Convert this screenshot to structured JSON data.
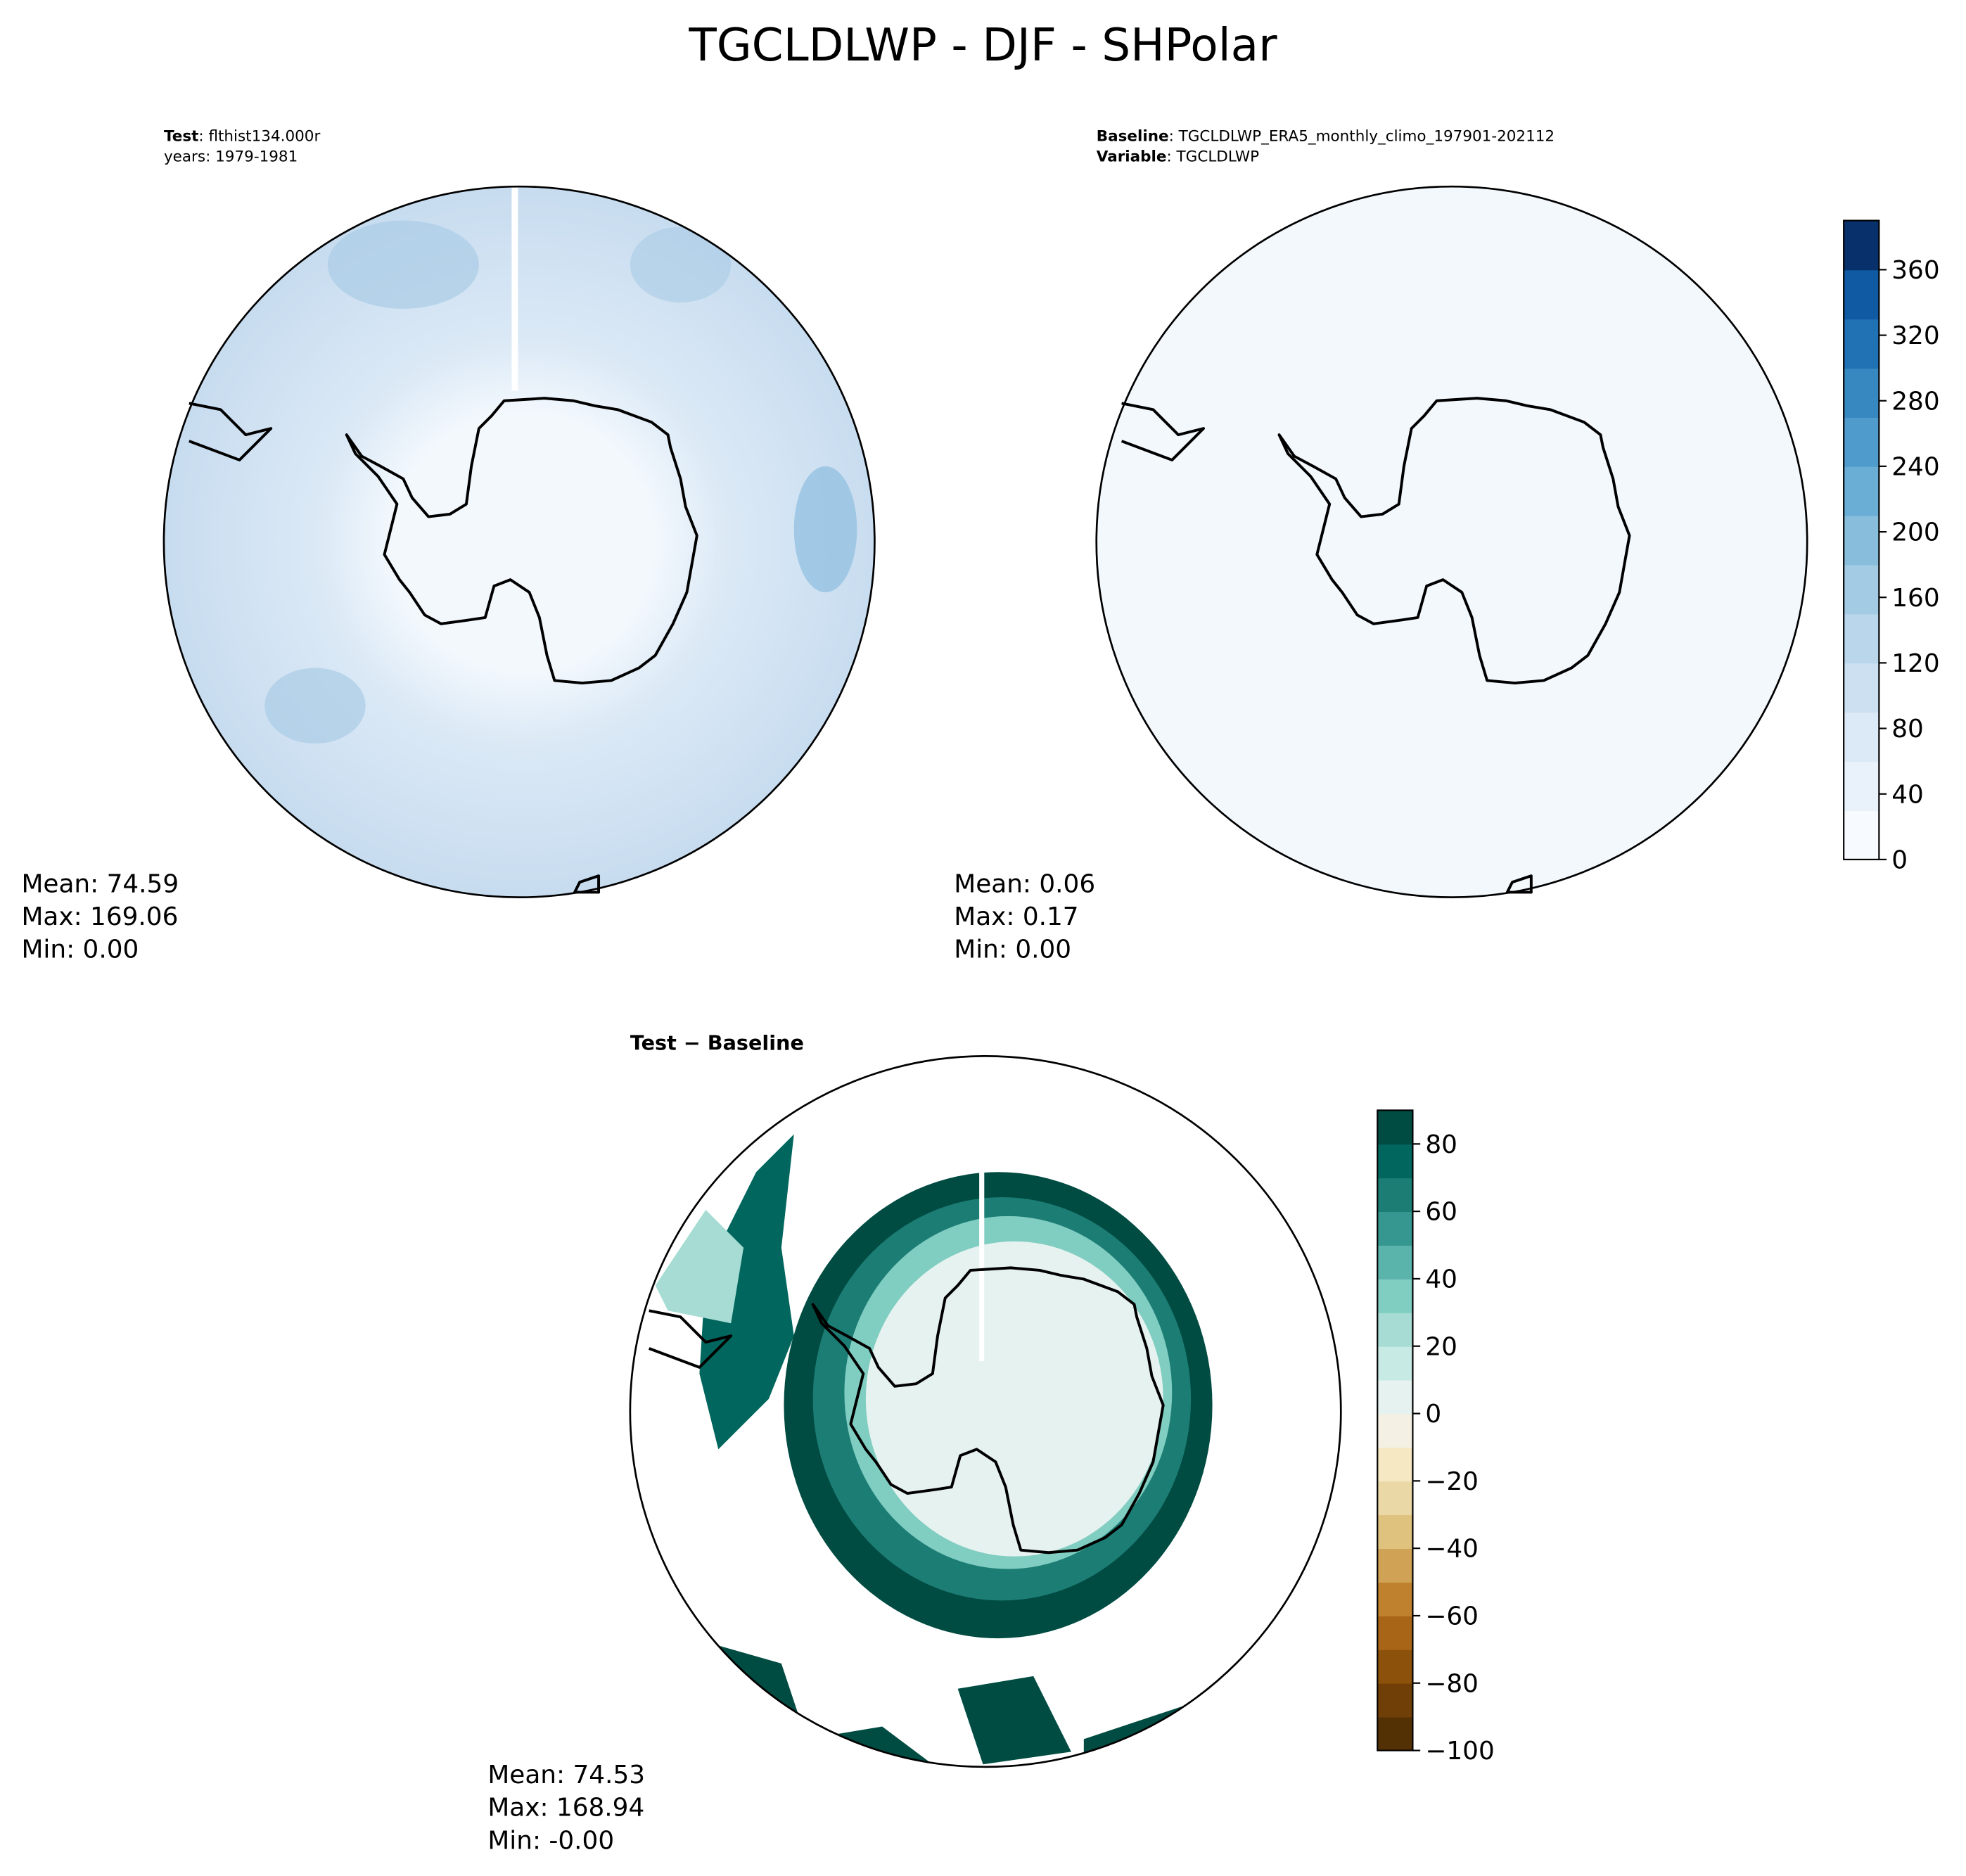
{
  "chart_data": {
    "type": "polar-map",
    "title": "TGCLDLWP - DJF - SHPolar",
    "panels": [
      {
        "header": [
          [
            "Test",
            ": flthist134.000r"
          ],
          [
            "years: 1979-1981"
          ]
        ],
        "stats": [
          "Mean: 74.59",
          "Max: 169.06",
          "Min:  0.00"
        ]
      },
      {
        "header": [
          [
            "Baseline",
            ": TGCLDLWP_ERA5_monthly_climo_197901-202112"
          ],
          [
            "Variable",
            ": TGCLDLWP"
          ]
        ],
        "stats": [
          "Mean:  0.06",
          "Max:  0.17",
          "Min:  0.00"
        ]
      },
      {
        "header": [
          [
            "Test − Baseline"
          ]
        ],
        "stats": [
          "Mean: 74.53",
          "Max: 168.94",
          "Min: -0.00"
        ]
      }
    ],
    "colorbars": [
      {
        "ylim": [
          0,
          390
        ],
        "yticks": [
          0,
          40,
          80,
          120,
          160,
          200,
          240,
          280,
          320,
          360
        ],
        "colors": [
          "#f7fbff",
          "#e9f2fa",
          "#dce9f6",
          "#cde0f1",
          "#bad6eb",
          "#a3cbe3",
          "#88bedc",
          "#6aaed6",
          "#4f9bcb",
          "#3787c0",
          "#2171b5",
          "#0f5aa3",
          "#08306b"
        ]
      },
      {
        "ylim": [
          -100,
          90
        ],
        "yticks": [
          {
            "value": -100,
            "label": "−100"
          },
          {
            "value": -80,
            "label": "−80"
          },
          {
            "value": -60,
            "label": "−60"
          },
          {
            "value": -40,
            "label": "−40"
          },
          {
            "value": -20,
            "label": "−20"
          },
          0,
          20,
          40,
          60,
          80
        ],
        "colors": [
          "#543005",
          "#6f3f07",
          "#8c510a",
          "#a86518",
          "#bf812d",
          "#cfa255",
          "#dfc27d",
          "#ebd8a7",
          "#f6e8c3",
          "#f5f0e4",
          "#e6f2ef",
          "#c7eae5",
          "#a6dcd3",
          "#80cdc1",
          "#5ab4ac",
          "#35978f",
          "#1c7d75",
          "#01665e",
          "#004c42"
        ]
      }
    ]
  }
}
